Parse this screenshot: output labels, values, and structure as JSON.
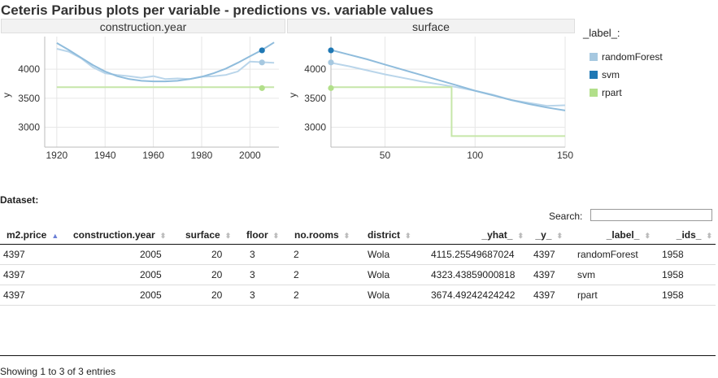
{
  "title": "Ceteris Paribus plots per variable - predictions vs. variable values",
  "legend": {
    "title": "_label_:",
    "items": [
      {
        "label": "randomForest",
        "color": "#a6c8e0"
      },
      {
        "label": "svm",
        "color": "#1f78b4"
      },
      {
        "label": "rpart",
        "color": "#b2df8a"
      }
    ]
  },
  "chart_data": [
    {
      "type": "line",
      "title": "construction.year",
      "ylabel": "y",
      "xlim": [
        1915,
        2012
      ],
      "ylim": [
        2660,
        4560
      ],
      "xticks": [
        1920,
        1940,
        1960,
        1980,
        2000
      ],
      "yticks": [
        3000,
        3500,
        4000
      ],
      "series": [
        {
          "name": "randomForest",
          "color": "#b9d5ea",
          "x": [
            1920,
            1925,
            1930,
            1935,
            1940,
            1945,
            1950,
            1955,
            1960,
            1965,
            1970,
            1975,
            1980,
            1985,
            1990,
            1995,
            2000,
            2005,
            2010
          ],
          "y": [
            4350,
            4300,
            4190,
            4030,
            3930,
            3900,
            3880,
            3850,
            3880,
            3830,
            3840,
            3830,
            3870,
            3880,
            3900,
            3960,
            4130,
            4120,
            4110
          ]
        },
        {
          "name": "svm",
          "color": "#8fbcdc",
          "x": [
            1920,
            1925,
            1930,
            1935,
            1940,
            1945,
            1950,
            1955,
            1960,
            1965,
            1970,
            1975,
            1980,
            1985,
            1990,
            1995,
            2000,
            2005,
            2010
          ],
          "y": [
            4450,
            4330,
            4200,
            4070,
            3960,
            3880,
            3830,
            3800,
            3790,
            3790,
            3800,
            3830,
            3870,
            3930,
            4010,
            4110,
            4220,
            4330,
            4460
          ]
        },
        {
          "name": "rpart",
          "color": "#c6e6a9",
          "x": [
            1920,
            2010
          ],
          "y": [
            3690,
            3690
          ]
        }
      ],
      "points": [
        {
          "name": "svm",
          "x": 2005,
          "y": 4323.43859000818,
          "color": "#1f78b4"
        },
        {
          "name": "randomForest",
          "x": 2005,
          "y": 4115.25549687024,
          "color": "#a6c8e0"
        },
        {
          "name": "rpart",
          "x": 2005,
          "y": 3674.49242424242,
          "color": "#b2df8a"
        }
      ]
    },
    {
      "type": "line",
      "title": "surface",
      "ylabel": "y",
      "xlim": [
        20,
        150
      ],
      "ylim": [
        2660,
        4560
      ],
      "xticks": [
        50,
        100,
        150
      ],
      "yticks": [
        3000,
        3500,
        4000
      ],
      "series": [
        {
          "name": "randomForest",
          "color": "#b9d5ea",
          "x": [
            20,
            30,
            40,
            50,
            60,
            70,
            80,
            90,
            100,
            110,
            120,
            130,
            140,
            150
          ],
          "y": [
            4110,
            4050,
            3980,
            3910,
            3850,
            3790,
            3740,
            3690,
            3630,
            3560,
            3470,
            3420,
            3370,
            3380
          ]
        },
        {
          "name": "svm",
          "color": "#8fbcdc",
          "x": [
            20,
            30,
            40,
            50,
            60,
            70,
            80,
            90,
            100,
            110,
            120,
            130,
            140,
            150
          ],
          "y": [
            4330,
            4250,
            4170,
            4080,
            3990,
            3900,
            3810,
            3720,
            3630,
            3550,
            3470,
            3400,
            3340,
            3290
          ]
        },
        {
          "name": "rpart",
          "color": "#c6e6a9",
          "x": [
            20,
            87,
            87,
            150
          ],
          "y": [
            3690,
            3690,
            2850,
            2850
          ]
        }
      ],
      "points": [
        {
          "name": "svm",
          "x": 20,
          "y": 4323.43859000818,
          "color": "#1f78b4"
        },
        {
          "name": "randomForest",
          "x": 20,
          "y": 4115.25549687024,
          "color": "#a6c8e0"
        },
        {
          "name": "rpart",
          "x": 20,
          "y": 3674.49242424242,
          "color": "#b2df8a"
        }
      ]
    }
  ],
  "dataset": {
    "title": "Dataset:",
    "search_label": "Search:",
    "search_value": "",
    "columns": [
      "m2.price",
      "construction.year",
      "surface",
      "floor",
      "no.rooms",
      "district",
      "_yhat_",
      "_y_",
      "_label_",
      "_ids_"
    ],
    "rows": [
      [
        "4397",
        "2005",
        "20",
        "3",
        "2",
        "Wola",
        "4115.25549687024",
        "4397",
        "randomForest",
        "1958"
      ],
      [
        "4397",
        "2005",
        "20",
        "3",
        "2",
        "Wola",
        "4323.43859000818",
        "4397",
        "svm",
        "1958"
      ],
      [
        "4397",
        "2005",
        "20",
        "3",
        "2",
        "Wola",
        "3674.49242424242",
        "4397",
        "rpart",
        "1958"
      ]
    ],
    "info": "Showing 1 to 3 of 3 entries"
  }
}
